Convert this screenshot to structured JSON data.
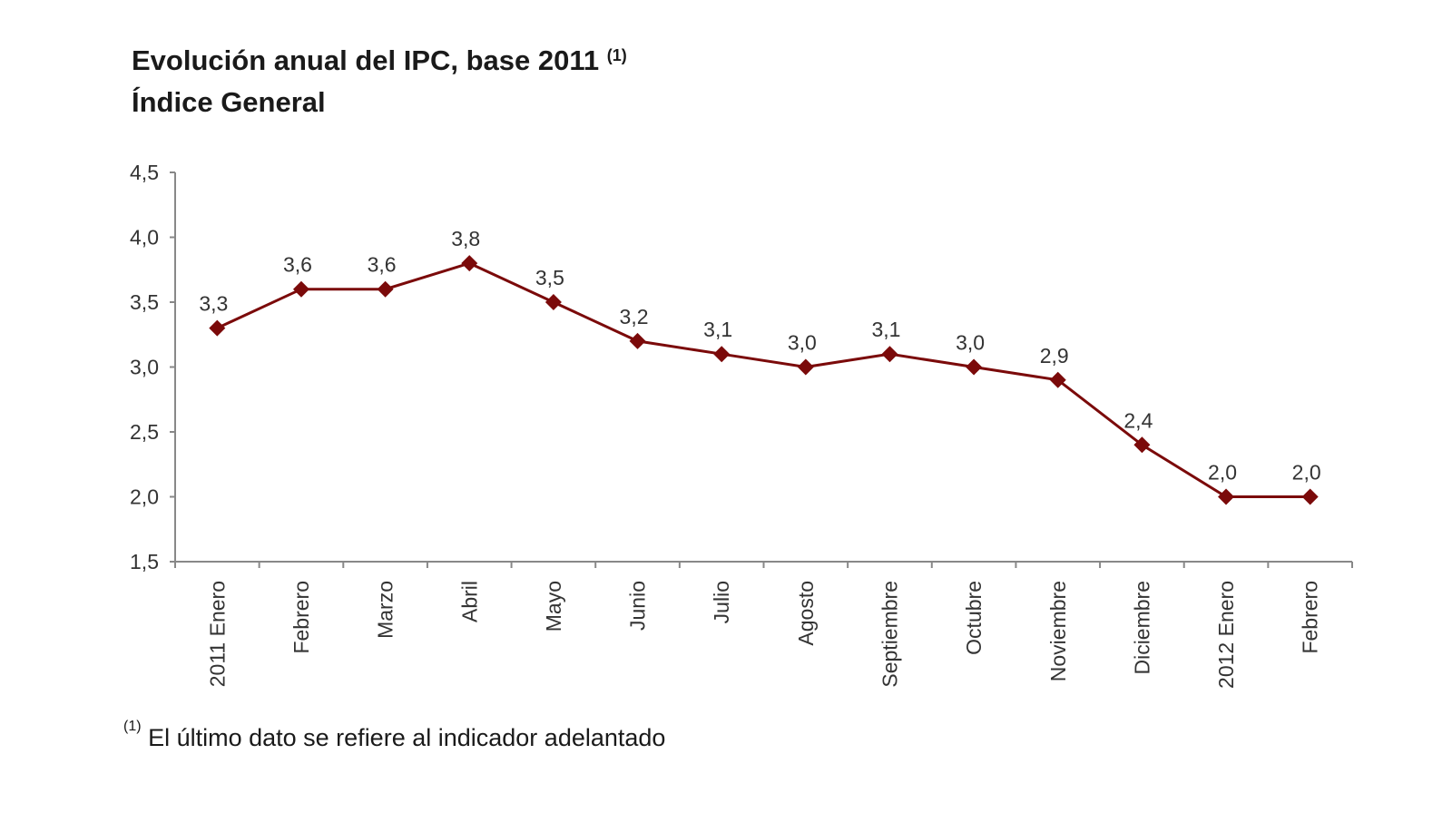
{
  "chart_data": {
    "type": "line",
    "title": "Evolución anual del IPC, base 2011",
    "title_note": "(1)",
    "subtitle": "Índice General",
    "categories": [
      "2011 Enero",
      "Febrero",
      "Marzo",
      "Abril",
      "Mayo",
      "Junio",
      "Julio",
      "Agosto",
      "Septiembre",
      "Octubre",
      "Noviembre",
      "Diciembre",
      "2012 Enero",
      "Febrero"
    ],
    "values": [
      3.3,
      3.6,
      3.6,
      3.8,
      3.5,
      3.2,
      3.1,
      3.0,
      3.1,
      3.0,
      2.9,
      2.4,
      2.0,
      2.0
    ],
    "data_labels": [
      "3,3",
      "3,6",
      "3,6",
      "3,8",
      "3,5",
      "3,2",
      "3,1",
      "3,0",
      "3,1",
      "3,0",
      "2,9",
      "2,4",
      "2,0",
      "2,0"
    ],
    "y_ticks": [
      "1,5",
      "2,0",
      "2,5",
      "3,0",
      "3,5",
      "4,0",
      "4,5"
    ],
    "ylim": [
      1.5,
      4.5
    ],
    "xlabel": "",
    "ylabel": "",
    "grid": false,
    "marker": "diamond",
    "line_color": "#7b0a0a",
    "footnote_mark": "(1)",
    "footnote": "El último dato se refiere al indicador adelantado"
  }
}
